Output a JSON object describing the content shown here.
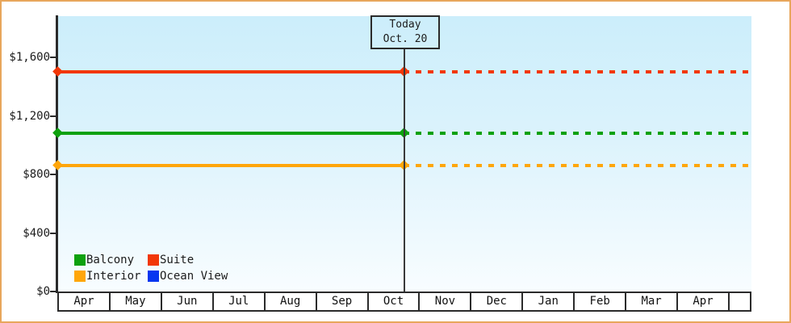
{
  "chart_data": {
    "type": "line",
    "title": "",
    "x_categories": [
      "Apr",
      "May",
      "Jun",
      "Jul",
      "Aug",
      "Sep",
      "Oct",
      "Nov",
      "Dec",
      "Jan",
      "Feb",
      "Mar",
      "Apr"
    ],
    "y_ticks": [
      {
        "label": "$0",
        "value": 0
      },
      {
        "label": "$400",
        "value": 400
      },
      {
        "label": "$800",
        "value": 800
      },
      {
        "label": "$1,200",
        "value": 1200
      },
      {
        "label": "$1,600",
        "value": 1600
      }
    ],
    "ylim": [
      0,
      1880
    ],
    "today_annotation": {
      "line1": "Today",
      "line2": "Oct. 20"
    },
    "series": [
      {
        "name": "Balcony",
        "color": "#0ea10e",
        "price": 1080
      },
      {
        "name": "Suite",
        "color": "#f23708",
        "price": 1500
      },
      {
        "name": "Interior",
        "color": "#ffa60a",
        "price": 860
      },
      {
        "name": "Ocean View",
        "color": "#0636f0",
        "price": null
      }
    ],
    "legend_position": "bottom-left",
    "grid": false
  },
  "colors": {
    "frame_border": "#e8a65c",
    "axis": "#2b2b2b",
    "plot_bg_top": "#cceefb",
    "plot_bg_bottom": "#f8fdff"
  }
}
